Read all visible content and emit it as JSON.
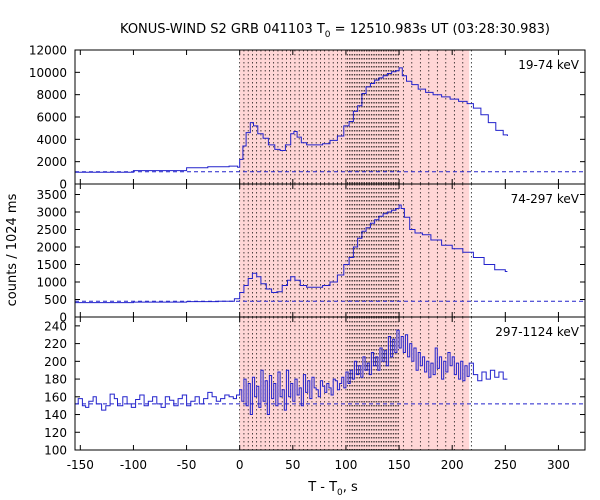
{
  "title": {
    "prefix": "KONUS-WIND S2 GRB 041103 T",
    "sub": "0",
    "suffix": " = 12510.983s UT (03:28:30.983)"
  },
  "xlabel": {
    "prefix": "T - T",
    "sub": "0",
    "suffix": ", s"
  },
  "ylabel": "counts / 1024 ms",
  "chart_data": {
    "type": "line",
    "xlim": [
      -155,
      325
    ],
    "x_ticks": [
      -150,
      -100,
      -50,
      0,
      50,
      100,
      150,
      200,
      250,
      300
    ],
    "colors": {
      "series": "#2222cc",
      "shade": "#ffd6d6",
      "frame": "#000000",
      "marker": "#000000"
    },
    "shaded_interval": [
      0,
      216
    ],
    "panels": [
      {
        "label": "19-74 keV",
        "ylim": [
          0,
          12000
        ],
        "y_ticks": [
          0,
          2000,
          4000,
          6000,
          8000,
          10000,
          12000
        ],
        "background": 1100,
        "series": [
          [
            -155,
            1050
          ],
          [
            -100,
            1200
          ],
          [
            -50,
            1450
          ],
          [
            -30,
            1550
          ],
          [
            -10,
            1600
          ],
          [
            -2,
            1500
          ],
          [
            0,
            2200
          ],
          [
            3,
            3400
          ],
          [
            6,
            4600
          ],
          [
            10,
            5500
          ],
          [
            13,
            5200
          ],
          [
            17,
            4500
          ],
          [
            22,
            4100
          ],
          [
            27,
            3500
          ],
          [
            33,
            3100
          ],
          [
            38,
            3000
          ],
          [
            43,
            3500
          ],
          [
            48,
            4500
          ],
          [
            51,
            4700
          ],
          [
            54,
            4200
          ],
          [
            58,
            3700
          ],
          [
            63,
            3500
          ],
          [
            70,
            3500
          ],
          [
            78,
            3600
          ],
          [
            85,
            3900
          ],
          [
            92,
            4300
          ],
          [
            98,
            5200
          ],
          [
            103,
            5600
          ],
          [
            107,
            6500
          ],
          [
            111,
            7000
          ],
          [
            115,
            8100
          ],
          [
            119,
            8700
          ],
          [
            123,
            9000
          ],
          [
            127,
            9300
          ],
          [
            131,
            9500
          ],
          [
            135,
            9700
          ],
          [
            139,
            9900
          ],
          [
            143,
            10050
          ],
          [
            147,
            10150
          ],
          [
            150,
            10400
          ],
          [
            153,
            9700
          ],
          [
            157,
            9200
          ],
          [
            162,
            8900
          ],
          [
            168,
            8500
          ],
          [
            175,
            8200
          ],
          [
            182,
            8000
          ],
          [
            190,
            7800
          ],
          [
            198,
            7600
          ],
          [
            206,
            7400
          ],
          [
            214,
            7200
          ],
          [
            220,
            6800
          ],
          [
            227,
            6200
          ],
          [
            234,
            5500
          ],
          [
            241,
            4800
          ],
          [
            248,
            4400
          ],
          [
            252,
            4300
          ]
        ]
      },
      {
        "label": "74-297 keV",
        "ylim": [
          0,
          3800
        ],
        "y_ticks": [
          0,
          500,
          1000,
          1500,
          2000,
          2500,
          3000,
          3500
        ],
        "background": 450,
        "series": [
          [
            -155,
            410
          ],
          [
            -100,
            425
          ],
          [
            -50,
            440
          ],
          [
            -20,
            450
          ],
          [
            -5,
            520
          ],
          [
            0,
            700
          ],
          [
            4,
            900
          ],
          [
            8,
            1100
          ],
          [
            12,
            1250
          ],
          [
            16,
            1150
          ],
          [
            20,
            950
          ],
          [
            25,
            800
          ],
          [
            30,
            700
          ],
          [
            35,
            720
          ],
          [
            40,
            900
          ],
          [
            45,
            1050
          ],
          [
            48,
            1150
          ],
          [
            52,
            1050
          ],
          [
            57,
            900
          ],
          [
            63,
            850
          ],
          [
            70,
            850
          ],
          [
            78,
            900
          ],
          [
            85,
            1000
          ],
          [
            92,
            1200
          ],
          [
            98,
            1500
          ],
          [
            103,
            1700
          ],
          [
            107,
            2000
          ],
          [
            111,
            2250
          ],
          [
            115,
            2450
          ],
          [
            119,
            2550
          ],
          [
            123,
            2680
          ],
          [
            127,
            2780
          ],
          [
            131,
            2880
          ],
          [
            135,
            2950
          ],
          [
            139,
            3000
          ],
          [
            143,
            3050
          ],
          [
            147,
            3100
          ],
          [
            150,
            3200
          ],
          [
            152,
            3100
          ],
          [
            155,
            2850
          ],
          [
            160,
            2500
          ],
          [
            165,
            2400
          ],
          [
            172,
            2350
          ],
          [
            180,
            2200
          ],
          [
            190,
            2050
          ],
          [
            200,
            1950
          ],
          [
            210,
            1850
          ],
          [
            220,
            1700
          ],
          [
            230,
            1500
          ],
          [
            240,
            1350
          ],
          [
            250,
            1300
          ],
          [
            252,
            1300
          ]
        ]
      },
      {
        "label": "297-1124 keV",
        "ylim": [
          100,
          250
        ],
        "y_ticks": [
          100,
          120,
          140,
          160,
          180,
          200,
          220,
          240
        ],
        "background": 152,
        "series": [
          [
            -155,
            152
          ],
          [
            -152,
            158
          ],
          [
            -148,
            150
          ],
          [
            -145,
            148
          ],
          [
            -142,
            155
          ],
          [
            -138,
            160
          ],
          [
            -135,
            152
          ],
          [
            -130,
            145
          ],
          [
            -126,
            150
          ],
          [
            -122,
            163
          ],
          [
            -118,
            158
          ],
          [
            -115,
            150
          ],
          [
            -110,
            160
          ],
          [
            -106,
            152
          ],
          [
            -102,
            148
          ],
          [
            -98,
            157
          ],
          [
            -94,
            162
          ],
          [
            -90,
            150
          ],
          [
            -86,
            155
          ],
          [
            -82,
            160
          ],
          [
            -78,
            152
          ],
          [
            -74,
            148
          ],
          [
            -70,
            160
          ],
          [
            -66,
            156
          ],
          [
            -62,
            150
          ],
          [
            -58,
            158
          ],
          [
            -54,
            162
          ],
          [
            -50,
            150
          ],
          [
            -46,
            155
          ],
          [
            -42,
            160
          ],
          [
            -38,
            152
          ],
          [
            -34,
            158
          ],
          [
            -30,
            165
          ],
          [
            -26,
            160
          ],
          [
            -22,
            155
          ],
          [
            -18,
            158
          ],
          [
            -14,
            162
          ],
          [
            -10,
            160
          ],
          [
            -6,
            158
          ],
          [
            -3,
            162
          ],
          [
            0,
            168
          ],
          [
            2,
            155
          ],
          [
            4,
            180
          ],
          [
            6,
            150
          ],
          [
            8,
            175
          ],
          [
            10,
            140
          ],
          [
            12,
            182
          ],
          [
            14,
            160
          ],
          [
            16,
            172
          ],
          [
            18,
            148
          ],
          [
            20,
            190
          ],
          [
            22,
            155
          ],
          [
            24,
            178
          ],
          [
            26,
            140
          ],
          [
            28,
            184
          ],
          [
            30,
            158
          ],
          [
            32,
            175
          ],
          [
            34,
            150
          ],
          [
            36,
            188
          ],
          [
            38,
            160
          ],
          [
            40,
            168
          ],
          [
            42,
            145
          ],
          [
            44,
            190
          ],
          [
            46,
            160
          ],
          [
            48,
            175
          ],
          [
            50,
            155
          ],
          [
            52,
            180
          ],
          [
            54,
            162
          ],
          [
            56,
            170
          ],
          [
            58,
            150
          ],
          [
            60,
            185
          ],
          [
            62,
            165
          ],
          [
            64,
            178
          ],
          [
            66,
            158
          ],
          [
            68,
            182
          ],
          [
            70,
            170
          ],
          [
            72,
            168
          ],
          [
            74,
            160
          ],
          [
            76,
            178
          ],
          [
            78,
            172
          ],
          [
            80,
            165
          ],
          [
            82,
            175
          ],
          [
            84,
            170
          ],
          [
            86,
            162
          ],
          [
            88,
            180
          ],
          [
            90,
            178
          ],
          [
            92,
            168
          ],
          [
            94,
            175
          ],
          [
            96,
            182
          ],
          [
            98,
            170
          ],
          [
            100,
            188
          ],
          [
            102,
            175
          ],
          [
            104,
            190
          ],
          [
            106,
            180
          ],
          [
            108,
            200
          ],
          [
            110,
            185
          ],
          [
            112,
            195
          ],
          [
            114,
            182
          ],
          [
            116,
            205
          ],
          [
            118,
            190
          ],
          [
            120,
            198
          ],
          [
            122,
            185
          ],
          [
            124,
            210
          ],
          [
            126,
            195
          ],
          [
            128,
            205
          ],
          [
            130,
            190
          ],
          [
            132,
            215
          ],
          [
            134,
            200
          ],
          [
            136,
            212
          ],
          [
            138,
            195
          ],
          [
            140,
            228
          ],
          [
            142,
            205
          ],
          [
            144,
            225
          ],
          [
            146,
            210
          ],
          [
            148,
            235
          ],
          [
            150,
            215
          ],
          [
            152,
            228
          ],
          [
            154,
            210
          ],
          [
            156,
            230
          ],
          [
            158,
            205
          ],
          [
            160,
            220
          ],
          [
            162,
            200
          ],
          [
            164,
            215
          ],
          [
            166,
            190
          ],
          [
            168,
            210
          ],
          [
            170,
            195
          ],
          [
            172,
            205
          ],
          [
            174,
            188
          ],
          [
            176,
            200
          ],
          [
            178,
            182
          ],
          [
            180,
            198
          ],
          [
            182,
            185
          ],
          [
            184,
            215
          ],
          [
            186,
            192
          ],
          [
            188,
            205
          ],
          [
            190,
            180
          ],
          [
            192,
            200
          ],
          [
            194,
            188
          ],
          [
            196,
            210
          ],
          [
            198,
            195
          ],
          [
            200,
            205
          ],
          [
            202,
            185
          ],
          [
            204,
            198
          ],
          [
            206,
            180
          ],
          [
            208,
            200
          ],
          [
            210,
            178
          ],
          [
            212,
            195
          ],
          [
            214,
            183
          ],
          [
            216,
            198
          ],
          [
            220,
            185
          ],
          [
            224,
            178
          ],
          [
            228,
            188
          ],
          [
            232,
            180
          ],
          [
            236,
            190
          ],
          [
            240,
            182
          ],
          [
            244,
            188
          ],
          [
            248,
            180
          ],
          [
            252,
            180
          ]
        ]
      }
    ]
  }
}
